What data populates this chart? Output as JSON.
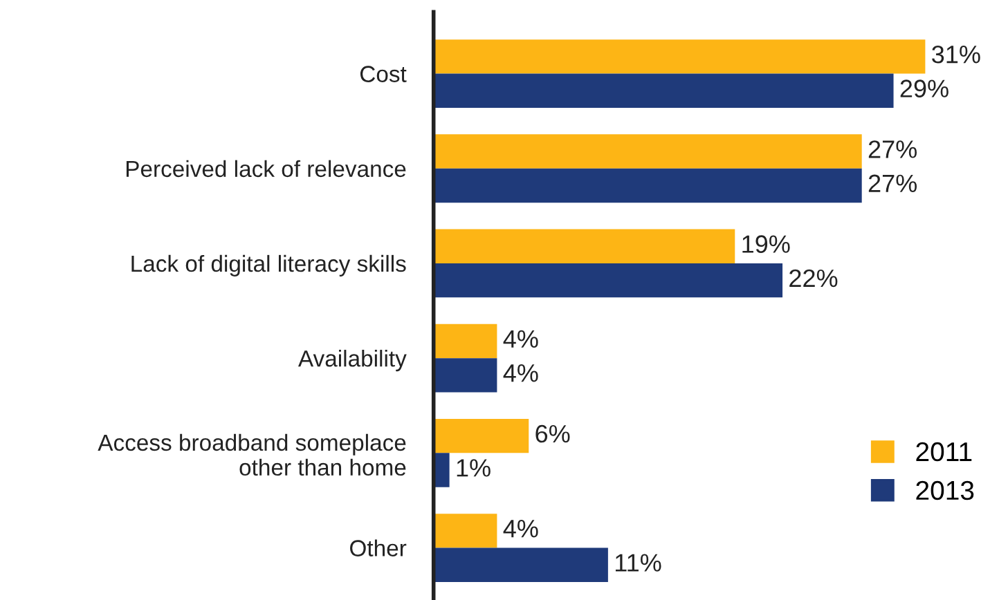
{
  "chart_data": {
    "type": "bar",
    "orientation": "horizontal",
    "categories": [
      "Cost",
      "Perceived lack of relevance",
      "Lack of digital literacy skills",
      "Availability",
      "Access broadband someplace\nother than home",
      "Other"
    ],
    "series": [
      {
        "name": "2011",
        "color": "#fdb515",
        "values": [
          31,
          27,
          19,
          4,
          6,
          4
        ],
        "value_labels": [
          "31%",
          "27%",
          "19%",
          "4%",
          "6%",
          "4%"
        ]
      },
      {
        "name": "2013",
        "color": "#1f3a7a",
        "values": [
          29,
          27,
          22,
          4,
          1,
          11
        ],
        "value_labels": [
          "29%",
          "27%",
          "22%",
          "4%",
          "1%",
          "11%"
        ]
      }
    ],
    "legend": "bottom right",
    "grid": false
  }
}
